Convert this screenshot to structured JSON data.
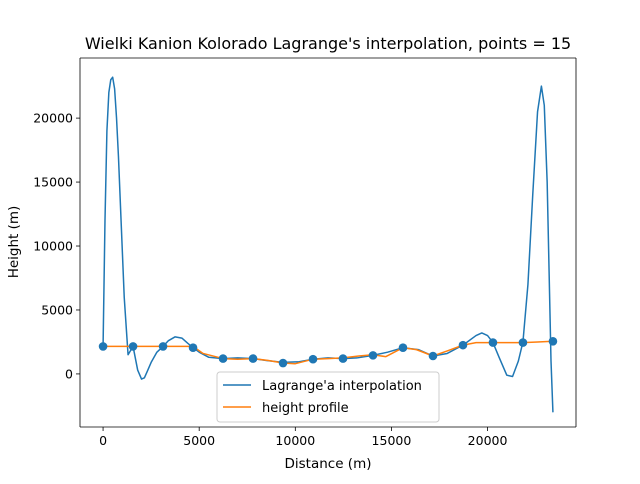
{
  "chart_data": {
    "type": "line",
    "title": "Wielki Kanion Kolorado Lagrange's interpolation, points = 15",
    "xlabel": "Distance (m)",
    "ylabel": "Height (m)",
    "xlim": [
      -1200,
      24600
    ],
    "ylim": [
      -4150,
      24700
    ],
    "x_ticks": [
      0,
      5000,
      10000,
      15000,
      20000
    ],
    "x_tick_labels": [
      "0",
      "5000",
      "10000",
      "15000",
      "20000"
    ],
    "y_ticks": [
      0,
      5000,
      10000,
      15000,
      20000
    ],
    "y_tick_labels": [
      "0",
      "5000",
      "10000",
      "15000",
      "20000"
    ],
    "grid": false,
    "legend_position": "lower center",
    "colors": {
      "interpolation": "#1f77b4",
      "profile": "#ff7f0e"
    },
    "series": [
      {
        "name": "Lagrange'a interpolation",
        "color": "#1f77b4",
        "x": [
          0,
          100,
          200,
          300,
          400,
          500,
          600,
          700,
          800,
          950,
          1100,
          1300,
          1560,
          1800,
          2000,
          2150,
          2300,
          2500,
          2800,
          3120,
          3400,
          3750,
          4100,
          4400,
          4680,
          5000,
          5500,
          6240,
          7000,
          7800,
          8500,
          9360,
          10200,
          10920,
          11700,
          12480,
          13200,
          14040,
          14800,
          15600,
          16400,
          17160,
          17900,
          18720,
          19400,
          19700,
          20000,
          20280,
          20600,
          21000,
          21300,
          21600,
          21840,
          22100,
          22350,
          22600,
          22800,
          22950,
          23100,
          23200,
          23300,
          23400
        ],
        "y": [
          2150,
          12000,
          19000,
          22000,
          23000,
          23200,
          22300,
          20000,
          17000,
          11500,
          6000,
          1500,
          2150,
          300,
          -400,
          -300,
          200,
          900,
          1700,
          2150,
          2600,
          2900,
          2800,
          2400,
          2050,
          1700,
          1300,
          1200,
          1250,
          1200,
          1050,
          900,
          950,
          1150,
          1250,
          1200,
          1250,
          1450,
          1700,
          2050,
          1900,
          1400,
          1600,
          2250,
          3000,
          3200,
          3000,
          2450,
          1300,
          -100,
          -200,
          1000,
          2500,
          7000,
          14000,
          20500,
          22500,
          21000,
          15000,
          8000,
          1000,
          -3000
        ]
      },
      {
        "name": "height profile",
        "color": "#ff7f0e",
        "x": [
          0,
          1560,
          3120,
          4680,
          5200,
          6240,
          7000,
          7800,
          8600,
          9360,
          10000,
          10920,
          11700,
          12480,
          13300,
          14040,
          14700,
          15600,
          16300,
          17160,
          17900,
          18720,
          19400,
          20280,
          21000,
          21840,
          22600,
          23400
        ],
        "y": [
          2150,
          2150,
          2150,
          2150,
          1600,
          1200,
          1150,
          1200,
          1050,
          850,
          800,
          1150,
          1200,
          1250,
          1400,
          1500,
          1350,
          2050,
          1900,
          1400,
          1800,
          2250,
          2450,
          2450,
          2450,
          2450,
          2500,
          2550
        ]
      }
    ],
    "markers": {
      "color": "#1f77b4",
      "x": [
        0,
        1560,
        3120,
        4680,
        6240,
        7800,
        9360,
        10920,
        12480,
        14040,
        15600,
        17160,
        18720,
        20280,
        21840,
        23400
      ],
      "y": [
        2150,
        2150,
        2150,
        2050,
        1200,
        1200,
        850,
        1150,
        1200,
        1450,
        2050,
        1400,
        2250,
        2450,
        2450,
        2550
      ]
    }
  }
}
